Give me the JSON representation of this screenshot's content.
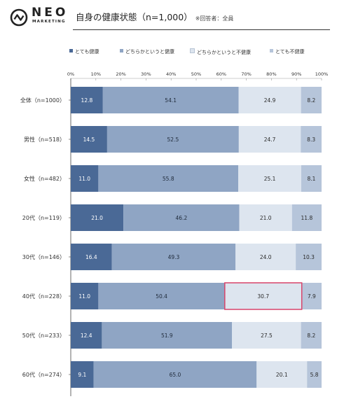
{
  "header": {
    "logo_text": "NEO",
    "logo_sub": "MARKETING",
    "title": "自身の健康状態（n=1,000）",
    "note": "※回答者：全員"
  },
  "colors": {
    "s1": "#4a6996",
    "s2": "#8fa5c4",
    "s3": "#dde5ef",
    "s4": "#b6c5da",
    "highlight": "#d8446a"
  },
  "chart_data": {
    "type": "bar",
    "orientation": "horizontal",
    "stacked": true,
    "normalized": true,
    "xlim": [
      0,
      100
    ],
    "x_ticks": [
      "0%",
      "10%",
      "20%",
      "30%",
      "40%",
      "50%",
      "60%",
      "70%",
      "80%",
      "90%",
      "100%"
    ],
    "categories": [
      "全体（n=1000）",
      "男性（n=518）",
      "女性（n=482）",
      "20代（n=119）",
      "30代（n=146）",
      "40代（n=228）",
      "50代（n=233）",
      "60代（n=274）"
    ],
    "series": [
      {
        "name": "とても健康",
        "values": [
          12.8,
          14.5,
          11.0,
          21.0,
          16.4,
          11.0,
          12.4,
          9.1
        ]
      },
      {
        "name": "どちらかというと健康",
        "values": [
          54.1,
          52.5,
          55.8,
          46.2,
          49.3,
          50.4,
          51.9,
          65.0
        ]
      },
      {
        "name": "どちらかというと不健康",
        "values": [
          24.9,
          24.7,
          25.1,
          21.0,
          24.0,
          30.7,
          27.5,
          20.1
        ]
      },
      {
        "name": "とても不健康",
        "values": [
          8.2,
          8.3,
          8.1,
          11.8,
          10.3,
          7.9,
          8.2,
          5.8
        ]
      }
    ],
    "labels": [
      [
        "12.8",
        "54.1",
        "24.9",
        "8.2"
      ],
      [
        "14.5",
        "52.5",
        "24.7",
        "8.3"
      ],
      [
        "11.0",
        "55.8",
        "25.1",
        "8.1"
      ],
      [
        "21.0",
        "46.2",
        "21.0",
        "11.8"
      ],
      [
        "16.4",
        "49.3",
        "24.0",
        "10.3"
      ],
      [
        "11.0",
        "50.4",
        "30.7",
        "7.9"
      ],
      [
        "12.4",
        "51.9",
        "27.5",
        "8.2"
      ],
      [
        "9.1",
        "65.0",
        "20.1",
        "5.8"
      ]
    ],
    "highlight": {
      "category_index": 5,
      "series_index": 2
    },
    "legend_position": "top",
    "grid": false
  }
}
